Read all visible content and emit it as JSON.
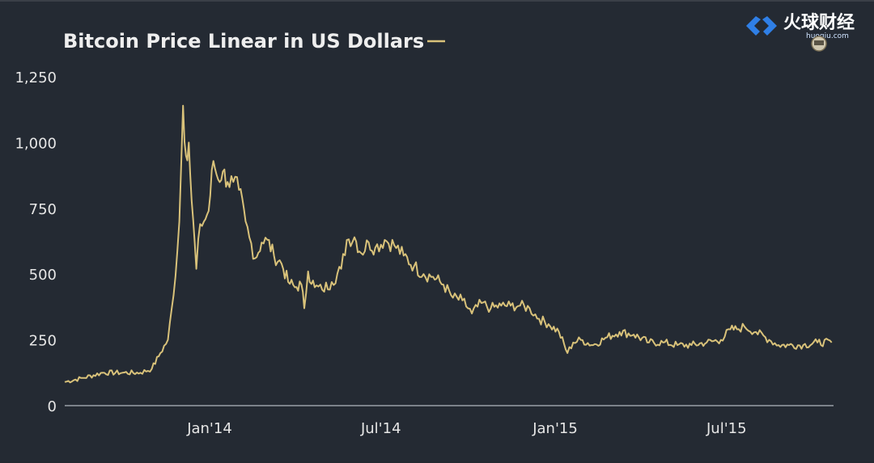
{
  "chart_data": {
    "type": "line",
    "title": "Bitcoin Price Linear in US Dollars",
    "xlabel": "",
    "ylabel": "",
    "ylim": [
      0,
      1250
    ],
    "y_ticks": [
      0,
      250,
      500,
      750,
      "1,000",
      "1,250"
    ],
    "x_ticks": [
      "Jan'14",
      "Jul'14",
      "Jan'15",
      "Jul'15"
    ],
    "grid": false,
    "series": [
      {
        "color": "#d9c27a",
        "x": [
          "2013-08-01",
          "2013-08-20",
          "2013-09-10",
          "2013-10-01",
          "2013-10-20",
          "2013-11-01",
          "2013-11-10",
          "2013-11-18",
          "2013-11-24",
          "2013-11-30",
          "2013-12-04",
          "2013-12-07",
          "2013-12-10",
          "2013-12-13",
          "2013-12-18",
          "2013-12-22",
          "2013-12-26",
          "2013-12-31",
          "2014-01-05",
          "2014-01-10",
          "2014-01-15",
          "2014-01-20",
          "2014-01-26",
          "2014-02-01",
          "2014-02-08",
          "2014-02-12",
          "2014-02-18",
          "2014-02-25",
          "2014-03-03",
          "2014-03-10",
          "2014-03-18",
          "2014-03-25",
          "2014-04-01",
          "2014-04-08",
          "2014-04-11",
          "2014-04-15",
          "2014-04-22",
          "2014-04-30",
          "2014-05-10",
          "2014-05-20",
          "2014-05-26",
          "2014-06-03",
          "2014-06-10",
          "2014-06-18",
          "2014-06-25",
          "2014-07-05",
          "2014-07-15",
          "2014-07-25",
          "2014-08-05",
          "2014-08-15",
          "2014-08-25",
          "2014-09-05",
          "2014-09-15",
          "2014-09-25",
          "2014-10-05",
          "2014-10-15",
          "2014-10-25",
          "2014-11-05",
          "2014-11-15",
          "2014-11-25",
          "2014-12-05",
          "2014-12-15",
          "2014-12-25",
          "2015-01-05",
          "2015-01-14",
          "2015-01-20",
          "2015-01-28",
          "2015-02-10",
          "2015-02-25",
          "2015-03-10",
          "2015-03-25",
          "2015-04-10",
          "2015-04-25",
          "2015-05-10",
          "2015-05-25",
          "2015-06-10",
          "2015-06-25",
          "2015-07-05",
          "2015-07-12",
          "2015-07-20",
          "2015-08-01",
          "2015-08-15",
          "2015-08-25",
          "2015-09-05",
          "2015-09-20",
          "2015-10-05",
          "2015-10-20"
        ],
        "y": [
          90,
          105,
          125,
          125,
          125,
          140,
          200,
          250,
          420,
          700,
          1140,
          950,
          1000,
          780,
          520,
          690,
          700,
          740,
          930,
          860,
          890,
          850,
          850,
          820,
          700,
          640,
          560,
          620,
          630,
          570,
          540,
          470,
          450,
          460,
          370,
          510,
          450,
          440,
          470,
          520,
          630,
          640,
          580,
          620,
          600,
          630,
          610,
          570,
          530,
          500,
          490,
          460,
          410,
          400,
          350,
          390,
          370,
          380,
          380,
          380,
          370,
          330,
          310,
          280,
          200,
          240,
          250,
          230,
          260,
          280,
          270,
          240,
          240,
          230,
          230,
          240,
          250,
          290,
          290,
          300,
          280,
          250,
          230,
          230,
          230,
          240,
          240
        ]
      }
    ]
  },
  "watermark": {
    "brand": "火球财经",
    "site": "huoqiu.com"
  }
}
